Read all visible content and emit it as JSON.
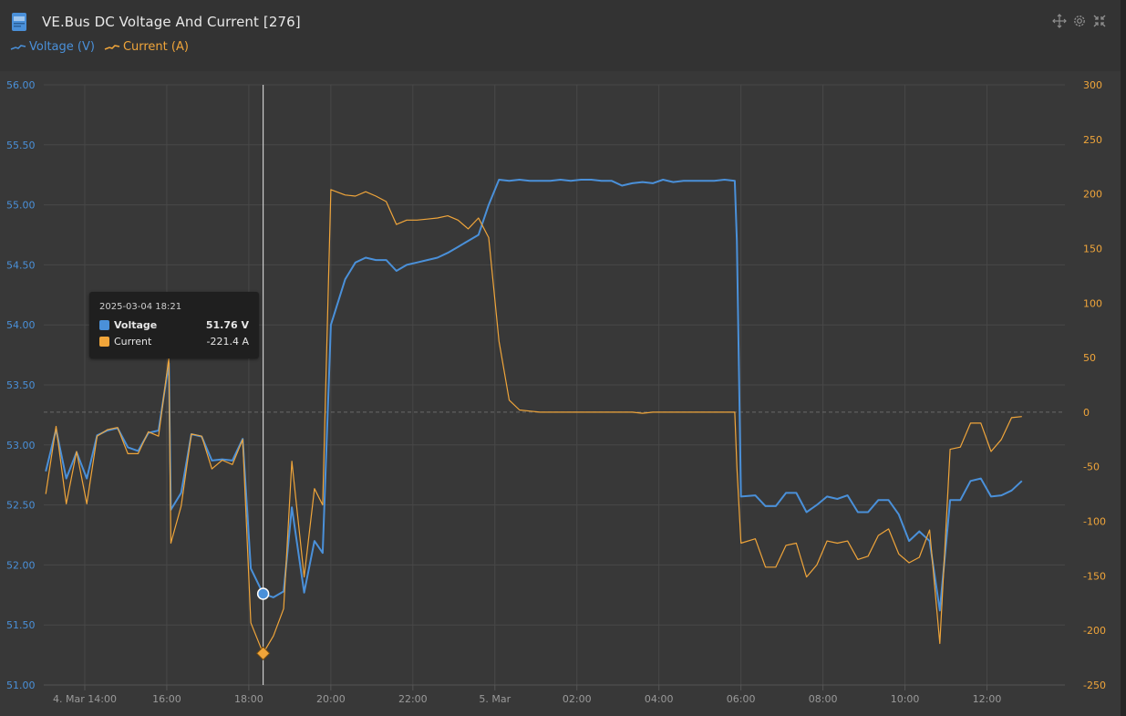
{
  "header": {
    "title": "VE.Bus DC Voltage And Current [276]",
    "icon": "device-icon",
    "tools": [
      "move-icon",
      "gear-icon",
      "collapse-icon"
    ]
  },
  "legend": {
    "voltage_label": "Voltage (V)",
    "current_label": "Current (A)"
  },
  "colors": {
    "voltage": "#4a90d9",
    "current": "#f0a53a",
    "grid": "#484848",
    "background": "#383838"
  },
  "tooltip": {
    "time": "2025-03-04 18:21",
    "voltage_label": "Voltage",
    "voltage_value": "51.76 V",
    "current_label": "Current",
    "current_value": "-221.4 A"
  },
  "chart_data": {
    "type": "line",
    "x_ticks": [
      "4. Mar 14:00",
      "16:00",
      "18:00",
      "20:00",
      "22:00",
      "5. Mar",
      "02:00",
      "04:00",
      "06:00",
      "08:00",
      "10:00",
      "12:00"
    ],
    "x_tick_hours": [
      14,
      16,
      18,
      20,
      22,
      24,
      26,
      28,
      30,
      32,
      34,
      36
    ],
    "x_range_hours": [
      13.0,
      37.9
    ],
    "y_left": {
      "label": "Voltage (V)",
      "ticks": [
        "51.00",
        "51.50",
        "52.00",
        "52.50",
        "53.00",
        "53.50",
        "54.00",
        "54.50",
        "55.00",
        "55.50",
        "56.00"
      ],
      "range": [
        51.0,
        56.0
      ]
    },
    "y_right": {
      "label": "Current (A)",
      "ticks": [
        "-250",
        "-200",
        "-150",
        "-100",
        "-50",
        "0",
        "50",
        "100",
        "150",
        "200",
        "250",
        "300"
      ],
      "range": [
        -250,
        300
      ]
    },
    "cursor_hour": 18.35,
    "series": [
      {
        "name": "Voltage (V)",
        "axis": "left",
        "points": [
          [
            13.05,
            52.78
          ],
          [
            13.3,
            53.13
          ],
          [
            13.55,
            52.72
          ],
          [
            13.8,
            52.94
          ],
          [
            14.05,
            52.72
          ],
          [
            14.3,
            53.08
          ],
          [
            14.55,
            53.12
          ],
          [
            14.8,
            53.14
          ],
          [
            15.05,
            52.98
          ],
          [
            15.3,
            52.95
          ],
          [
            15.55,
            53.1
          ],
          [
            15.8,
            53.12
          ],
          [
            16.05,
            53.68
          ],
          [
            16.1,
            52.46
          ],
          [
            16.35,
            52.6
          ],
          [
            16.6,
            53.09
          ],
          [
            16.85,
            53.07
          ],
          [
            17.1,
            52.87
          ],
          [
            17.35,
            52.88
          ],
          [
            17.6,
            52.87
          ],
          [
            17.85,
            53.05
          ],
          [
            18.05,
            51.97
          ],
          [
            18.35,
            51.76
          ],
          [
            18.6,
            51.73
          ],
          [
            18.85,
            51.78
          ],
          [
            19.05,
            52.48
          ],
          [
            19.35,
            51.77
          ],
          [
            19.6,
            52.2
          ],
          [
            19.8,
            52.1
          ],
          [
            20.0,
            54.0
          ],
          [
            20.35,
            54.38
          ],
          [
            20.6,
            54.52
          ],
          [
            20.85,
            54.56
          ],
          [
            21.1,
            54.54
          ],
          [
            21.35,
            54.54
          ],
          [
            21.6,
            54.45
          ],
          [
            21.85,
            54.5
          ],
          [
            22.1,
            54.52
          ],
          [
            22.35,
            54.54
          ],
          [
            22.6,
            54.56
          ],
          [
            22.85,
            54.6
          ],
          [
            23.1,
            54.65
          ],
          [
            23.35,
            54.7
          ],
          [
            23.6,
            54.75
          ],
          [
            23.85,
            55.0
          ],
          [
            24.1,
            55.21
          ],
          [
            24.35,
            55.2
          ],
          [
            24.6,
            55.21
          ],
          [
            24.85,
            55.2
          ],
          [
            25.1,
            55.2
          ],
          [
            25.35,
            55.2
          ],
          [
            25.6,
            55.21
          ],
          [
            25.85,
            55.2
          ],
          [
            26.1,
            55.21
          ],
          [
            26.35,
            55.21
          ],
          [
            26.6,
            55.2
          ],
          [
            26.85,
            55.2
          ],
          [
            27.1,
            55.16
          ],
          [
            27.35,
            55.18
          ],
          [
            27.6,
            55.19
          ],
          [
            27.85,
            55.18
          ],
          [
            28.1,
            55.21
          ],
          [
            28.35,
            55.19
          ],
          [
            28.6,
            55.2
          ],
          [
            28.85,
            55.2
          ],
          [
            29.1,
            55.2
          ],
          [
            29.35,
            55.2
          ],
          [
            29.6,
            55.21
          ],
          [
            29.85,
            55.2
          ],
          [
            29.9,
            54.7
          ],
          [
            30.0,
            52.57
          ],
          [
            30.35,
            52.58
          ],
          [
            30.6,
            52.49
          ],
          [
            30.85,
            52.49
          ],
          [
            31.1,
            52.6
          ],
          [
            31.35,
            52.6
          ],
          [
            31.6,
            52.44
          ],
          [
            31.85,
            52.5
          ],
          [
            32.1,
            52.57
          ],
          [
            32.35,
            52.55
          ],
          [
            32.6,
            52.58
          ],
          [
            32.85,
            52.44
          ],
          [
            33.1,
            52.44
          ],
          [
            33.35,
            52.54
          ],
          [
            33.6,
            52.54
          ],
          [
            33.85,
            52.42
          ],
          [
            34.1,
            52.2
          ],
          [
            34.35,
            52.28
          ],
          [
            34.6,
            52.2
          ],
          [
            34.85,
            51.62
          ],
          [
            35.1,
            52.54
          ],
          [
            35.35,
            52.54
          ],
          [
            35.6,
            52.7
          ],
          [
            35.85,
            52.72
          ],
          [
            36.1,
            52.57
          ],
          [
            36.35,
            52.58
          ],
          [
            36.6,
            52.62
          ],
          [
            36.85,
            52.7
          ]
        ]
      },
      {
        "name": "Current (A)",
        "axis": "right",
        "points": [
          [
            13.05,
            -75
          ],
          [
            13.3,
            -13
          ],
          [
            13.55,
            -84
          ],
          [
            13.8,
            -36
          ],
          [
            14.05,
            -84
          ],
          [
            14.3,
            -22
          ],
          [
            14.55,
            -16
          ],
          [
            14.8,
            -14
          ],
          [
            15.05,
            -38
          ],
          [
            15.3,
            -38
          ],
          [
            15.55,
            -18
          ],
          [
            15.8,
            -22
          ],
          [
            16.05,
            50
          ],
          [
            16.1,
            -120
          ],
          [
            16.35,
            -86
          ],
          [
            16.6,
            -20
          ],
          [
            16.85,
            -22
          ],
          [
            17.1,
            -52
          ],
          [
            17.35,
            -44
          ],
          [
            17.6,
            -48
          ],
          [
            17.85,
            -25
          ],
          [
            18.05,
            -193
          ],
          [
            18.35,
            -221
          ],
          [
            18.6,
            -205
          ],
          [
            18.85,
            -180
          ],
          [
            19.05,
            -45
          ],
          [
            19.35,
            -151
          ],
          [
            19.6,
            -70
          ],
          [
            19.8,
            -85
          ],
          [
            20.0,
            204
          ],
          [
            20.35,
            199
          ],
          [
            20.6,
            198
          ],
          [
            20.85,
            202
          ],
          [
            21.1,
            198
          ],
          [
            21.35,
            193
          ],
          [
            21.6,
            172
          ],
          [
            21.85,
            176
          ],
          [
            22.1,
            176
          ],
          [
            22.35,
            177
          ],
          [
            22.6,
            178
          ],
          [
            22.85,
            180
          ],
          [
            23.1,
            176
          ],
          [
            23.35,
            168
          ],
          [
            23.6,
            178
          ],
          [
            23.85,
            160
          ],
          [
            24.1,
            65
          ],
          [
            24.35,
            11
          ],
          [
            24.6,
            2
          ],
          [
            24.85,
            1
          ],
          [
            25.1,
            0
          ],
          [
            25.35,
            0
          ],
          [
            25.6,
            0
          ],
          [
            25.85,
            0
          ],
          [
            26.1,
            0
          ],
          [
            26.35,
            0
          ],
          [
            26.6,
            0
          ],
          [
            26.85,
            0
          ],
          [
            27.1,
            0
          ],
          [
            27.35,
            0
          ],
          [
            27.6,
            -1
          ],
          [
            27.85,
            0
          ],
          [
            28.1,
            0
          ],
          [
            28.35,
            0
          ],
          [
            28.6,
            0
          ],
          [
            28.85,
            0
          ],
          [
            29.1,
            0
          ],
          [
            29.35,
            0
          ],
          [
            29.6,
            0
          ],
          [
            29.85,
            0
          ],
          [
            29.9,
            -50
          ],
          [
            30.0,
            -120
          ],
          [
            30.35,
            -116
          ],
          [
            30.6,
            -142
          ],
          [
            30.85,
            -142
          ],
          [
            31.1,
            -122
          ],
          [
            31.35,
            -120
          ],
          [
            31.6,
            -151
          ],
          [
            31.85,
            -140
          ],
          [
            32.1,
            -118
          ],
          [
            32.35,
            -120
          ],
          [
            32.6,
            -118
          ],
          [
            32.85,
            -135
          ],
          [
            33.1,
            -132
          ],
          [
            33.35,
            -113
          ],
          [
            33.6,
            -107
          ],
          [
            33.85,
            -130
          ],
          [
            34.1,
            -138
          ],
          [
            34.35,
            -133
          ],
          [
            34.6,
            -108
          ],
          [
            34.85,
            -212
          ],
          [
            35.1,
            -34
          ],
          [
            35.35,
            -32
          ],
          [
            35.6,
            -10
          ],
          [
            35.85,
            -10
          ],
          [
            36.1,
            -36
          ],
          [
            36.35,
            -25
          ],
          [
            36.6,
            -5
          ],
          [
            36.85,
            -4
          ]
        ]
      }
    ]
  }
}
